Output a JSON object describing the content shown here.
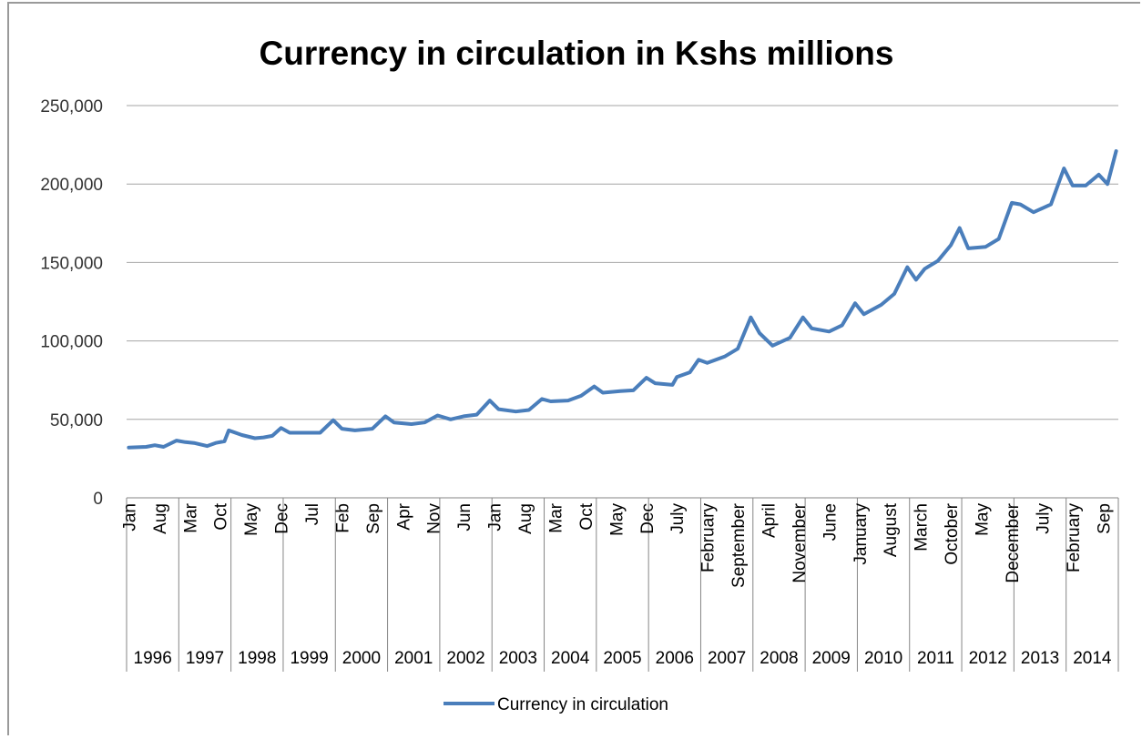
{
  "chart_data": {
    "type": "line",
    "title": "Currency in circulation in Kshs millions",
    "xlabel": "",
    "ylabel": "",
    "ylim": [
      0,
      250000
    ],
    "yticks": [
      0,
      50000,
      100000,
      150000,
      200000,
      250000
    ],
    "ytick_labels": [
      "0",
      "50,000",
      "100,000",
      "150,000",
      "200,000",
      "250,000"
    ],
    "grid": true,
    "legend_position": "bottom",
    "colors": {
      "series": "#4a7ebb",
      "grid": "#a6a6a6",
      "axis": "#868686"
    },
    "years": [
      "1996",
      "1997",
      "1998",
      "1999",
      "2000",
      "2001",
      "2002",
      "2003",
      "2004",
      "2005",
      "2006",
      "2007",
      "2008",
      "2009",
      "2010",
      "2011",
      "2012",
      "2013",
      "2014"
    ],
    "month_ticks": [
      {
        "label": "Jan",
        "x": "1996-01"
      },
      {
        "label": "Aug",
        "x": "1996-08"
      },
      {
        "label": "Mar",
        "x": "1997-03"
      },
      {
        "label": "Oct",
        "x": "1997-10"
      },
      {
        "label": "May",
        "x": "1998-05"
      },
      {
        "label": "Dec",
        "x": "1998-12"
      },
      {
        "label": "Jul",
        "x": "1999-07"
      },
      {
        "label": "Feb",
        "x": "2000-02"
      },
      {
        "label": "Sep",
        "x": "2000-09"
      },
      {
        "label": "Apr",
        "x": "2001-04"
      },
      {
        "label": "Nov",
        "x": "2001-11"
      },
      {
        "label": "Jun",
        "x": "2002-06"
      },
      {
        "label": "Jan",
        "x": "2003-01"
      },
      {
        "label": "Aug",
        "x": "2003-08"
      },
      {
        "label": "Mar",
        "x": "2004-03"
      },
      {
        "label": "Oct",
        "x": "2004-10"
      },
      {
        "label": "May",
        "x": "2005-05"
      },
      {
        "label": "Dec",
        "x": "2005-12"
      },
      {
        "label": "July",
        "x": "2006-07"
      },
      {
        "label": "February",
        "x": "2007-02"
      },
      {
        "label": "September",
        "x": "2007-09"
      },
      {
        "label": "April",
        "x": "2008-04"
      },
      {
        "label": "November",
        "x": "2008-11"
      },
      {
        "label": "June",
        "x": "2009-06"
      },
      {
        "label": "January",
        "x": "2010-01"
      },
      {
        "label": "August",
        "x": "2010-08"
      },
      {
        "label": "March",
        "x": "2011-03"
      },
      {
        "label": "October",
        "x": "2011-10"
      },
      {
        "label": "May",
        "x": "2012-05"
      },
      {
        "label": "December",
        "x": "2012-12"
      },
      {
        "label": "July",
        "x": "2013-07"
      },
      {
        "label": "February",
        "x": "2014-02"
      },
      {
        "label": "Sep",
        "x": "2014-09"
      }
    ],
    "series": [
      {
        "name": "Currency in circulation",
        "points": [
          [
            "1996-01",
            32000
          ],
          [
            "1996-05",
            32500
          ],
          [
            "1996-07",
            33500
          ],
          [
            "1996-09",
            32500
          ],
          [
            "1996-12",
            36500
          ],
          [
            "1997-02",
            35500
          ],
          [
            "1997-04",
            35000
          ],
          [
            "1997-07",
            33000
          ],
          [
            "1997-09",
            35000
          ],
          [
            "1997-11",
            36000
          ],
          [
            "1997-12",
            43000
          ],
          [
            "1998-03",
            40000
          ],
          [
            "1998-06",
            38000
          ],
          [
            "1998-08",
            38500
          ],
          [
            "1998-10",
            39500
          ],
          [
            "1998-12",
            44500
          ],
          [
            "1999-02",
            41500
          ],
          [
            "1999-06",
            41500
          ],
          [
            "1999-09",
            41500
          ],
          [
            "1999-12",
            49500
          ],
          [
            "2000-02",
            44000
          ],
          [
            "2000-05",
            43000
          ],
          [
            "2000-09",
            44000
          ],
          [
            "2000-12",
            52000
          ],
          [
            "2001-02",
            48000
          ],
          [
            "2001-06",
            47000
          ],
          [
            "2001-09",
            48000
          ],
          [
            "2001-12",
            52500
          ],
          [
            "2002-03",
            50000
          ],
          [
            "2002-06",
            52000
          ],
          [
            "2002-09",
            53000
          ],
          [
            "2002-12",
            62000
          ],
          [
            "2003-02",
            56500
          ],
          [
            "2003-06",
            55000
          ],
          [
            "2003-09",
            56000
          ],
          [
            "2003-12",
            63000
          ],
          [
            "2004-02",
            61500
          ],
          [
            "2004-06",
            62000
          ],
          [
            "2004-09",
            65000
          ],
          [
            "2004-12",
            71000
          ],
          [
            "2005-02",
            67000
          ],
          [
            "2005-06",
            68000
          ],
          [
            "2005-09",
            68500
          ],
          [
            "2005-12",
            76500
          ],
          [
            "2006-02",
            73000
          ],
          [
            "2006-06",
            72000
          ],
          [
            "2006-07",
            77000
          ],
          [
            "2006-10",
            80000
          ],
          [
            "2006-12",
            88000
          ],
          [
            "2007-02",
            86000
          ],
          [
            "2007-06",
            90000
          ],
          [
            "2007-09",
            95000
          ],
          [
            "2007-12",
            115000
          ],
          [
            "2008-02",
            105000
          ],
          [
            "2008-05",
            97000
          ],
          [
            "2008-09",
            102000
          ],
          [
            "2008-12",
            115000
          ],
          [
            "2009-02",
            108000
          ],
          [
            "2009-06",
            106000
          ],
          [
            "2009-09",
            110000
          ],
          [
            "2009-12",
            124000
          ],
          [
            "2010-02",
            117000
          ],
          [
            "2010-06",
            123000
          ],
          [
            "2010-09",
            130000
          ],
          [
            "2010-12",
            147000
          ],
          [
            "2011-02",
            139000
          ],
          [
            "2011-04",
            146000
          ],
          [
            "2011-07",
            151000
          ],
          [
            "2011-10",
            161000
          ],
          [
            "2011-12",
            172000
          ],
          [
            "2012-02",
            159000
          ],
          [
            "2012-06",
            160000
          ],
          [
            "2012-09",
            165000
          ],
          [
            "2012-12",
            188000
          ],
          [
            "2013-02",
            187000
          ],
          [
            "2013-05",
            182000
          ],
          [
            "2013-09",
            187000
          ],
          [
            "2013-12",
            210000
          ],
          [
            "2014-02",
            199000
          ],
          [
            "2014-05",
            199000
          ],
          [
            "2014-08",
            206000
          ],
          [
            "2014-10",
            200000
          ],
          [
            "2014-12",
            221000
          ]
        ]
      }
    ]
  }
}
